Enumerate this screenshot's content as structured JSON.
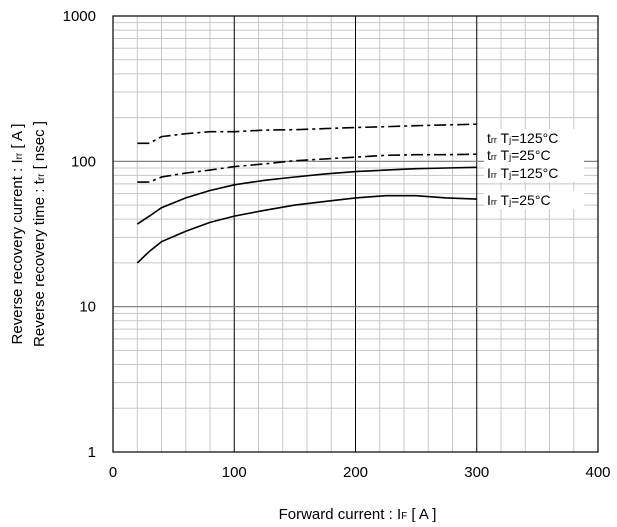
{
  "chart_data": {
    "type": "line",
    "xlabel": "Forward current : I F [ A ]",
    "ylabel": [
      "Reverse recovery current : Irr [ A ]",
      "Reverse recovery time : trr [ nsec ]"
    ],
    "xlim": [
      0,
      400
    ],
    "ylim": [
      1,
      1000
    ],
    "yscale": "log",
    "grid": true,
    "x_ticks": [
      "0",
      "100",
      "200",
      "300",
      "400"
    ],
    "y_ticks": [
      "1",
      "10",
      "100",
      "1000"
    ],
    "series": [
      {
        "name": "trr Tj=125°C",
        "style": "dash-dot",
        "color": "#000000",
        "points": [
          [
            20,
            133
          ],
          [
            30,
            133
          ],
          [
            40,
            148
          ],
          [
            60,
            155
          ],
          [
            80,
            160
          ],
          [
            100,
            160
          ],
          [
            125,
            164
          ],
          [
            150,
            165
          ],
          [
            175,
            168
          ],
          [
            200,
            171
          ],
          [
            225,
            173
          ],
          [
            250,
            176
          ],
          [
            275,
            178
          ],
          [
            300,
            180
          ]
        ]
      },
      {
        "name": "trr Tj=25°C",
        "style": "dash-dot",
        "color": "#000000",
        "points": [
          [
            20,
            72
          ],
          [
            30,
            72
          ],
          [
            40,
            78
          ],
          [
            60,
            83
          ],
          [
            80,
            87
          ],
          [
            100,
            92
          ],
          [
            125,
            96
          ],
          [
            150,
            101
          ],
          [
            175,
            104
          ],
          [
            200,
            107
          ],
          [
            225,
            110
          ],
          [
            250,
            111
          ],
          [
            275,
            111
          ],
          [
            300,
            112
          ]
        ]
      },
      {
        "name": "Irr Tj=125°C",
        "style": "solid",
        "color": "#000000",
        "points": [
          [
            20,
            37
          ],
          [
            30,
            42
          ],
          [
            40,
            48
          ],
          [
            60,
            56
          ],
          [
            80,
            63
          ],
          [
            100,
            69
          ],
          [
            125,
            74
          ],
          [
            150,
            78
          ],
          [
            175,
            82
          ],
          [
            200,
            85
          ],
          [
            225,
            87
          ],
          [
            250,
            89
          ],
          [
            275,
            90
          ],
          [
            300,
            91
          ]
        ]
      },
      {
        "name": "Irr Tj=25°C",
        "style": "solid",
        "color": "#000000",
        "points": [
          [
            20,
            20
          ],
          [
            30,
            24
          ],
          [
            40,
            28
          ],
          [
            60,
            33
          ],
          [
            80,
            38
          ],
          [
            100,
            42
          ],
          [
            125,
            46
          ],
          [
            150,
            50
          ],
          [
            175,
            53
          ],
          [
            200,
            56
          ],
          [
            225,
            58
          ],
          [
            250,
            58
          ],
          [
            275,
            56
          ],
          [
            300,
            55
          ]
        ]
      }
    ],
    "annotations": [
      {
        "main": "t",
        "sub": "rr",
        "rest": "  T",
        "sub2": "j",
        "tail": "=125°C"
      },
      {
        "main": "t",
        "sub": "rr",
        "rest": "  T",
        "sub2": "j",
        "tail": "=25°C"
      },
      {
        "main": "I",
        "sub": "rr",
        "rest": "  T",
        "sub2": "j",
        "tail": "=125°C"
      },
      {
        "main": "I",
        "sub": "rr",
        "rest": "  T",
        "sub2": "j",
        "tail": "=25°C"
      }
    ]
  }
}
